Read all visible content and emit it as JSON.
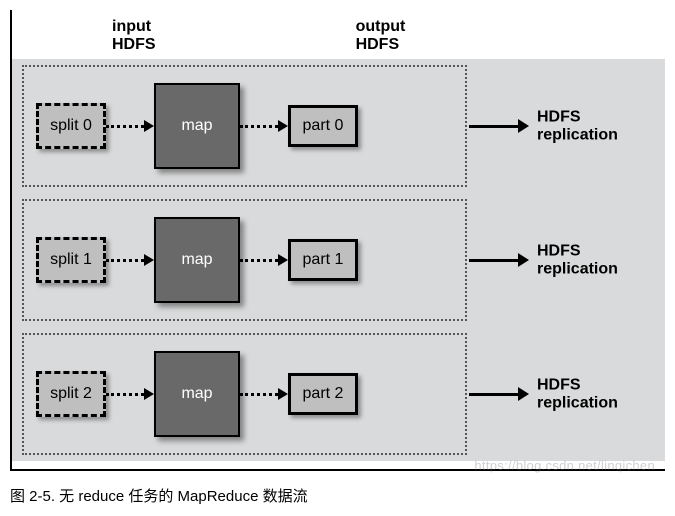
{
  "header": {
    "input_label": "input\nHDFS",
    "output_label": "output\nHDFS"
  },
  "colors": {
    "background": "#d9dadb",
    "split_fill": "#bfbfbf",
    "map_fill": "#6a6969",
    "part_fill": "#bfbfbf",
    "border": "#000000",
    "dotted_arrow": "#000000",
    "solid_arrow": "#000000",
    "text_dark": "#000000",
    "text_light": "#ffffff"
  },
  "sizes": {
    "header_fontsize": 16,
    "box_fontsize": 16,
    "out_label_fontsize": 16,
    "caption_fontsize": 15
  },
  "lanes": [
    {
      "split": "split 0",
      "map": "map",
      "part": "part 0",
      "out": "HDFS\nreplication"
    },
    {
      "split": "split 1",
      "map": "map",
      "part": "part 1",
      "out": "HDFS\nreplication"
    },
    {
      "split": "split 2",
      "map": "map",
      "part": "part 2",
      "out": "HDFS\nreplication"
    }
  ],
  "caption": "图 2-5.  无 reduce 任务的 MapReduce 数据流",
  "watermark": "https://blog.csdn.net/linqichen"
}
